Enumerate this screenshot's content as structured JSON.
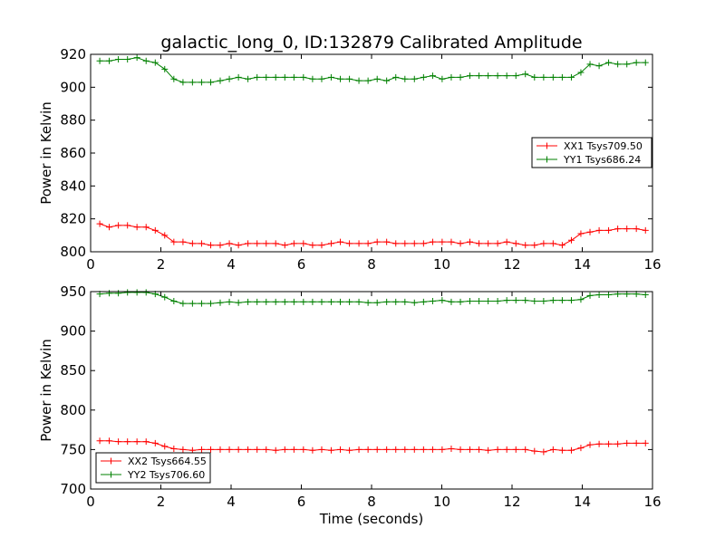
{
  "figure": {
    "title": "galactic_long_0, ID:132879 Calibrated Amplitude",
    "colors": {
      "xx": "#ff0000",
      "yy": "#008000",
      "axes": "#000000"
    }
  },
  "chart_data": [
    {
      "type": "line",
      "title": "galactic_long_0, ID:132879 Calibrated Amplitude",
      "xlabel": "",
      "ylabel": "Power in Kelvin",
      "xlim": [
        0,
        16
      ],
      "ylim": [
        800,
        920
      ],
      "xticks": [
        0,
        2,
        4,
        6,
        8,
        10,
        12,
        14,
        16
      ],
      "yticks": [
        800,
        820,
        840,
        860,
        880,
        900,
        920
      ],
      "grid": false,
      "legend_position": "center-right",
      "series": [
        {
          "name": "XX1 Tsys709.50",
          "color": "#ff0000",
          "marker": "plus",
          "x": [
            0.26,
            0.53,
            0.79,
            1.05,
            1.32,
            1.58,
            1.84,
            2.11,
            2.37,
            2.63,
            2.9,
            3.16,
            3.42,
            3.69,
            3.95,
            4.21,
            4.48,
            4.74,
            5.0,
            5.27,
            5.53,
            5.79,
            6.06,
            6.32,
            6.58,
            6.85,
            7.11,
            7.37,
            7.64,
            7.9,
            8.16,
            8.43,
            8.69,
            8.95,
            9.22,
            9.48,
            9.74,
            10.01,
            10.27,
            10.53,
            10.8,
            11.06,
            11.32,
            11.59,
            11.85,
            12.11,
            12.38,
            12.64,
            12.9,
            13.17,
            13.43,
            13.69,
            13.96,
            14.22,
            14.48,
            14.75,
            15.01,
            15.27,
            15.54,
            15.8
          ],
          "values": [
            817,
            815,
            816,
            816,
            815,
            815,
            813,
            810,
            806,
            806,
            805,
            805,
            804,
            804,
            805,
            804,
            805,
            805,
            805,
            805,
            804,
            805,
            805,
            804,
            804,
            805,
            806,
            805,
            805,
            805,
            806,
            806,
            805,
            805,
            805,
            805,
            806,
            806,
            806,
            805,
            806,
            805,
            805,
            805,
            806,
            805,
            804,
            804,
            805,
            805,
            804,
            807,
            811,
            812,
            813,
            813,
            814,
            814,
            814,
            813
          ]
        },
        {
          "name": "YY1 Tsys686.24",
          "color": "#008000",
          "marker": "plus",
          "x": [
            0.26,
            0.53,
            0.79,
            1.05,
            1.32,
            1.58,
            1.84,
            2.11,
            2.37,
            2.63,
            2.9,
            3.16,
            3.42,
            3.69,
            3.95,
            4.21,
            4.48,
            4.74,
            5.0,
            5.27,
            5.53,
            5.79,
            6.06,
            6.32,
            6.58,
            6.85,
            7.11,
            7.37,
            7.64,
            7.9,
            8.16,
            8.43,
            8.69,
            8.95,
            9.22,
            9.48,
            9.74,
            10.01,
            10.27,
            10.53,
            10.8,
            11.06,
            11.32,
            11.59,
            11.85,
            12.11,
            12.38,
            12.64,
            12.9,
            13.17,
            13.43,
            13.69,
            13.96,
            14.22,
            14.48,
            14.75,
            15.01,
            15.27,
            15.54,
            15.8
          ],
          "values": [
            916,
            916,
            917,
            917,
            918,
            916,
            915,
            911,
            905,
            903,
            903,
            903,
            903,
            904,
            905,
            906,
            905,
            906,
            906,
            906,
            906,
            906,
            906,
            905,
            905,
            906,
            905,
            905,
            904,
            904,
            905,
            904,
            906,
            905,
            905,
            906,
            907,
            905,
            906,
            906,
            907,
            907,
            907,
            907,
            907,
            907,
            908,
            906,
            906,
            906,
            906,
            906,
            909,
            914,
            913,
            915,
            914,
            914,
            915,
            915
          ]
        }
      ]
    },
    {
      "type": "line",
      "title": "",
      "xlabel": "Time (seconds)",
      "ylabel": "Power in Kelvin",
      "xlim": [
        0,
        16
      ],
      "ylim": [
        700,
        950
      ],
      "xticks": [
        0,
        2,
        4,
        6,
        8,
        10,
        12,
        14,
        16
      ],
      "yticks": [
        700,
        750,
        800,
        850,
        900,
        950
      ],
      "grid": false,
      "legend_position": "lower-left",
      "series": [
        {
          "name": "XX2 Tsys664.55",
          "color": "#ff0000",
          "marker": "plus",
          "x": [
            0.26,
            0.53,
            0.79,
            1.05,
            1.32,
            1.58,
            1.84,
            2.11,
            2.37,
            2.63,
            2.9,
            3.16,
            3.42,
            3.69,
            3.95,
            4.21,
            4.48,
            4.74,
            5.0,
            5.27,
            5.53,
            5.79,
            6.06,
            6.32,
            6.58,
            6.85,
            7.11,
            7.37,
            7.64,
            7.9,
            8.16,
            8.43,
            8.69,
            8.95,
            9.22,
            9.48,
            9.74,
            10.01,
            10.27,
            10.53,
            10.8,
            11.06,
            11.32,
            11.59,
            11.85,
            12.11,
            12.38,
            12.64,
            12.9,
            13.17,
            13.43,
            13.69,
            13.96,
            14.22,
            14.48,
            14.75,
            15.01,
            15.27,
            15.54,
            15.8
          ],
          "values": [
            761,
            761,
            760,
            760,
            760,
            760,
            758,
            754,
            751,
            750,
            749,
            750,
            750,
            750,
            750,
            750,
            750,
            750,
            750,
            749,
            750,
            750,
            750,
            749,
            750,
            749,
            750,
            749,
            750,
            750,
            750,
            750,
            750,
            750,
            750,
            750,
            750,
            750,
            751,
            750,
            750,
            750,
            749,
            750,
            750,
            750,
            750,
            748,
            747,
            750,
            749,
            749,
            752,
            756,
            757,
            757,
            757,
            758,
            758,
            758
          ]
        },
        {
          "name": "YY2 Tsys706.60",
          "color": "#008000",
          "marker": "plus",
          "x": [
            0.26,
            0.53,
            0.79,
            1.05,
            1.32,
            1.58,
            1.84,
            2.11,
            2.37,
            2.63,
            2.9,
            3.16,
            3.42,
            3.69,
            3.95,
            4.21,
            4.48,
            4.74,
            5.0,
            5.27,
            5.53,
            5.79,
            6.06,
            6.32,
            6.58,
            6.85,
            7.11,
            7.37,
            7.64,
            7.9,
            8.16,
            8.43,
            8.69,
            8.95,
            9.22,
            9.48,
            9.74,
            10.01,
            10.27,
            10.53,
            10.8,
            11.06,
            11.32,
            11.59,
            11.85,
            12.11,
            12.38,
            12.64,
            12.9,
            13.17,
            13.43,
            13.69,
            13.96,
            14.22,
            14.48,
            14.75,
            15.01,
            15.27,
            15.54,
            15.8
          ],
          "values": [
            947,
            948,
            948,
            949,
            949,
            949,
            947,
            943,
            938,
            935,
            935,
            935,
            935,
            936,
            937,
            936,
            937,
            937,
            937,
            937,
            937,
            937,
            937,
            937,
            937,
            937,
            937,
            937,
            937,
            936,
            936,
            937,
            937,
            937,
            936,
            937,
            938,
            939,
            937,
            937,
            938,
            938,
            938,
            938,
            939,
            939,
            939,
            938,
            938,
            939,
            939,
            939,
            940,
            945,
            946,
            946,
            947,
            947,
            947,
            946
          ]
        }
      ]
    }
  ]
}
